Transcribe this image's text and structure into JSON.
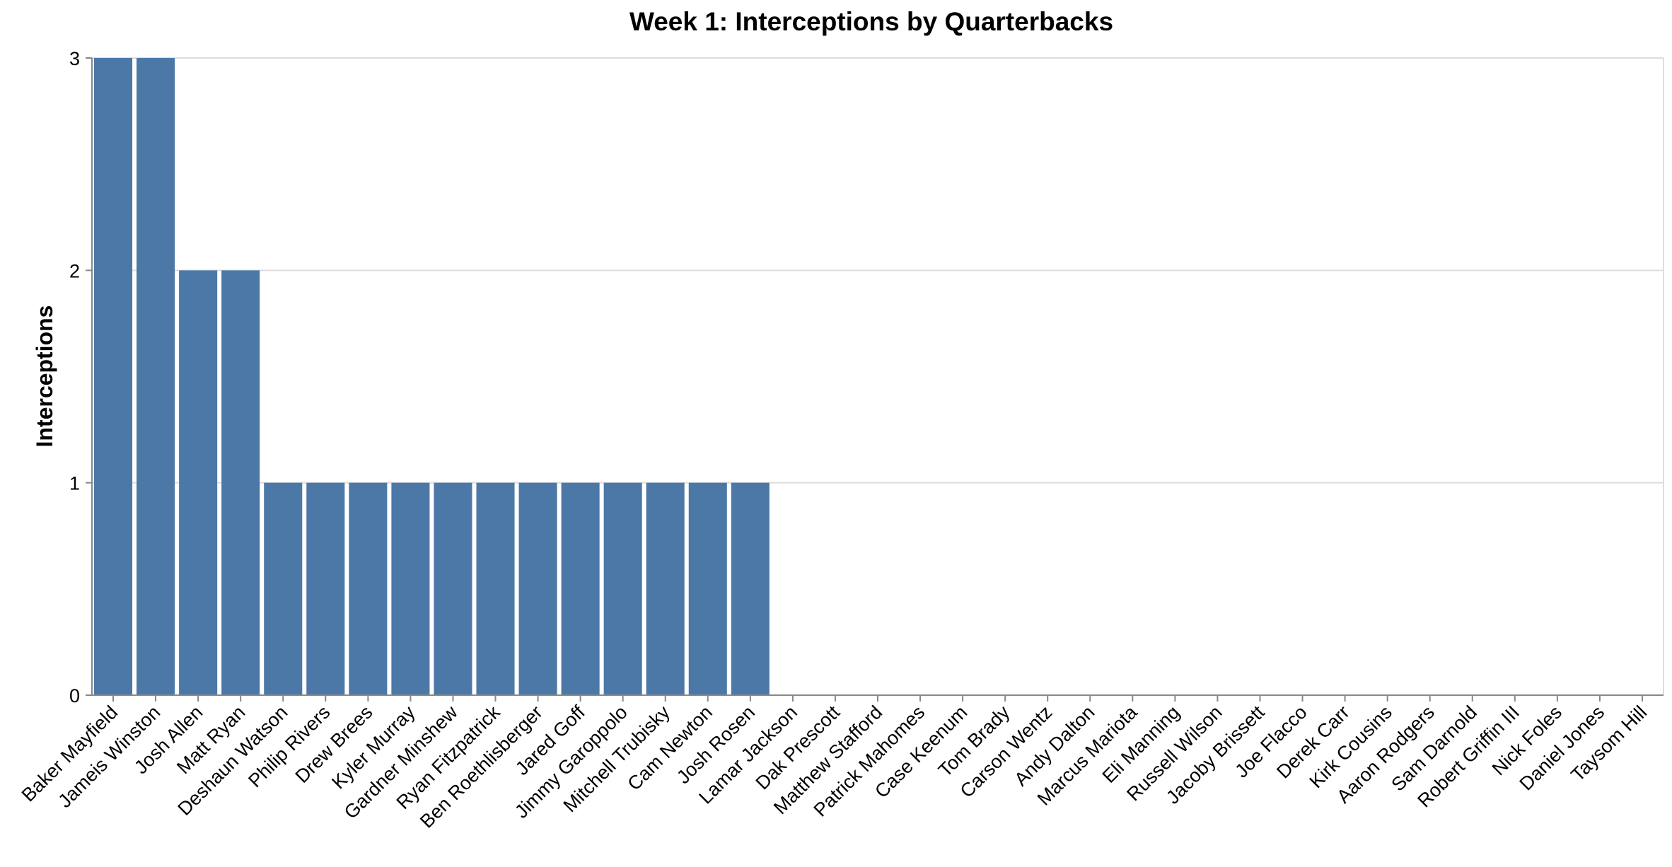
{
  "chart_data": {
    "type": "bar",
    "title": "Week 1: Interceptions by Quarterbacks",
    "xlabel": "",
    "ylabel": "Interceptions",
    "ylim": [
      0,
      3
    ],
    "yticks": [
      0,
      1,
      2,
      3
    ],
    "grid": true,
    "bar_color": "#4c78a8",
    "categories": [
      "Baker Mayfield",
      "Jameis Winston",
      "Josh Allen",
      "Matt Ryan",
      "Deshaun Watson",
      "Philip Rivers",
      "Drew Brees",
      "Kyler Murray",
      "Gardner Minshew",
      "Ryan Fitzpatrick",
      "Ben Roethlisberger",
      "Jared Goff",
      "Jimmy Garoppolo",
      "Mitchell Trubisky",
      "Cam Newton",
      "Josh Rosen",
      "Lamar Jackson",
      "Dak Prescott",
      "Matthew Stafford",
      "Patrick Mahomes",
      "Case Keenum",
      "Tom Brady",
      "Carson Wentz",
      "Andy Dalton",
      "Marcus Mariota",
      "Eli Manning",
      "Russell Wilson",
      "Jacoby Brissett",
      "Joe Flacco",
      "Derek Carr",
      "Kirk Cousins",
      "Aaron Rodgers",
      "Sam Darnold",
      "Robert Griffin III",
      "Nick Foles",
      "Daniel Jones",
      "Taysom Hill"
    ],
    "values": [
      3,
      3,
      2,
      2,
      1,
      1,
      1,
      1,
      1,
      1,
      1,
      1,
      1,
      1,
      1,
      1,
      0,
      0,
      0,
      0,
      0,
      0,
      0,
      0,
      0,
      0,
      0,
      0,
      0,
      0,
      0,
      0,
      0,
      0,
      0,
      0,
      0
    ]
  }
}
